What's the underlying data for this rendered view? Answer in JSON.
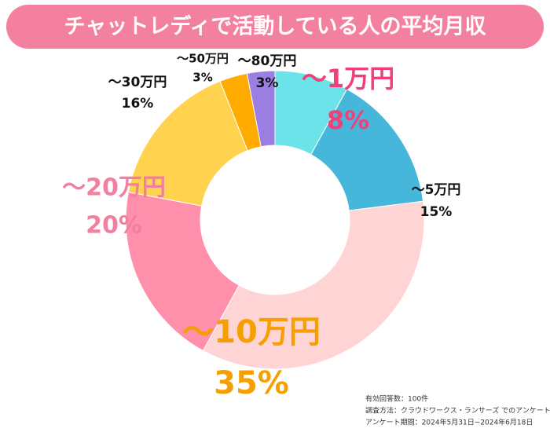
{
  "chart_data": {
    "type": "donut",
    "title": "チャットレディで活動している人の平均月収",
    "categories": [
      "～1万円",
      "～5万円",
      "～10万円",
      "～20万円",
      "～30万円",
      "～50万円",
      "～80万円"
    ],
    "values": [
      8,
      15,
      35,
      20,
      16,
      3,
      3
    ],
    "value_labels": [
      "8%",
      "15%",
      "35%",
      "20%",
      "16%",
      "3%",
      "3%"
    ],
    "colors": [
      "#6be3e8",
      "#46b7da",
      "#ffd4d4",
      "#ff8fab",
      "#ffd34f",
      "#ffab00",
      "#9b7ee2"
    ],
    "notes": [
      "有効回答数：100件",
      "調査方法：クラウドワークス・ランサーズ でのアンケート",
      "アンケート期間：2024年5月31日−2024年6月18日"
    ]
  }
}
